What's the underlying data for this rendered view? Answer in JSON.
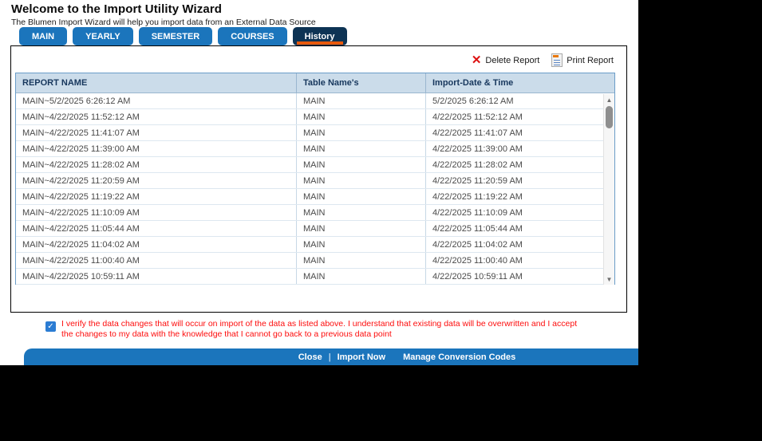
{
  "page": {
    "title": "Welcome to the Import Utility Wizard",
    "subtitle": "The Blumen Import Wizard will help you import data from an External Data Source"
  },
  "tabs": {
    "main": "MAIN",
    "yearly": "YEARLY",
    "semester": "SEMESTER",
    "courses": "COURSES",
    "history": "History",
    "active_tab": "History"
  },
  "toolbar": {
    "delete_icon": "✕",
    "delete_label": "Delete Report",
    "print_label": "Print Report"
  },
  "table": {
    "headers": {
      "report_name": "REPORT NAME",
      "table_names": "Table Name's",
      "import_date": "Import-Date & Time"
    },
    "rows": [
      {
        "report_name": "MAIN~5/2/2025 6:26:12 AM",
        "table_name": "MAIN",
        "import_date": "5/2/2025 6:26:12 AM"
      },
      {
        "report_name": "MAIN~4/22/2025 11:52:12 AM",
        "table_name": "MAIN",
        "import_date": "4/22/2025 11:52:12 AM"
      },
      {
        "report_name": "MAIN~4/22/2025 11:41:07 AM",
        "table_name": "MAIN",
        "import_date": "4/22/2025 11:41:07 AM"
      },
      {
        "report_name": "MAIN~4/22/2025 11:39:00 AM",
        "table_name": "MAIN",
        "import_date": "4/22/2025 11:39:00 AM"
      },
      {
        "report_name": "MAIN~4/22/2025 11:28:02 AM",
        "table_name": "MAIN",
        "import_date": "4/22/2025 11:28:02 AM"
      },
      {
        "report_name": "MAIN~4/22/2025 11:20:59 AM",
        "table_name": "MAIN",
        "import_date": "4/22/2025 11:20:59 AM"
      },
      {
        "report_name": "MAIN~4/22/2025 11:19:22 AM",
        "table_name": "MAIN",
        "import_date": "4/22/2025 11:19:22 AM"
      },
      {
        "report_name": "MAIN~4/22/2025 11:10:09 AM",
        "table_name": "MAIN",
        "import_date": "4/22/2025 11:10:09 AM"
      },
      {
        "report_name": "MAIN~4/22/2025 11:05:44 AM",
        "table_name": "MAIN",
        "import_date": "4/22/2025 11:05:44 AM"
      },
      {
        "report_name": "MAIN~4/22/2025 11:04:02 AM",
        "table_name": "MAIN",
        "import_date": "4/22/2025 11:04:02 AM"
      },
      {
        "report_name": "MAIN~4/22/2025 11:00:40 AM",
        "table_name": "MAIN",
        "import_date": "4/22/2025 11:00:40 AM"
      },
      {
        "report_name": "MAIN~4/22/2025 10:59:11 AM",
        "table_name": "MAIN",
        "import_date": "4/22/2025 10:59:11 AM"
      }
    ]
  },
  "scrollbar": {
    "up_arrow": "▲",
    "down_arrow": "▼"
  },
  "verify": {
    "checkbox_checked": true,
    "check_glyph": "✓",
    "text": "I verify the data changes that will occur on import of the data as listed above. I understand that existing data will be overwritten and I accept the changes to my data with the knowledge that I cannot go back to a previous data point"
  },
  "footer": {
    "close": "Close",
    "divider": "|",
    "import_now": "Import Now",
    "manage_codes": "Manage Conversion Codes"
  },
  "colors": {
    "accent_blue": "#1b75bc",
    "active_tab_navy": "#0d3354",
    "tab_underline_orange": "#e8590c",
    "table_header_bg": "#cbdcea",
    "table_header_text": "#17375d",
    "verify_text_red": "#fd0d0d",
    "delete_x_red": "#dd1111"
  }
}
